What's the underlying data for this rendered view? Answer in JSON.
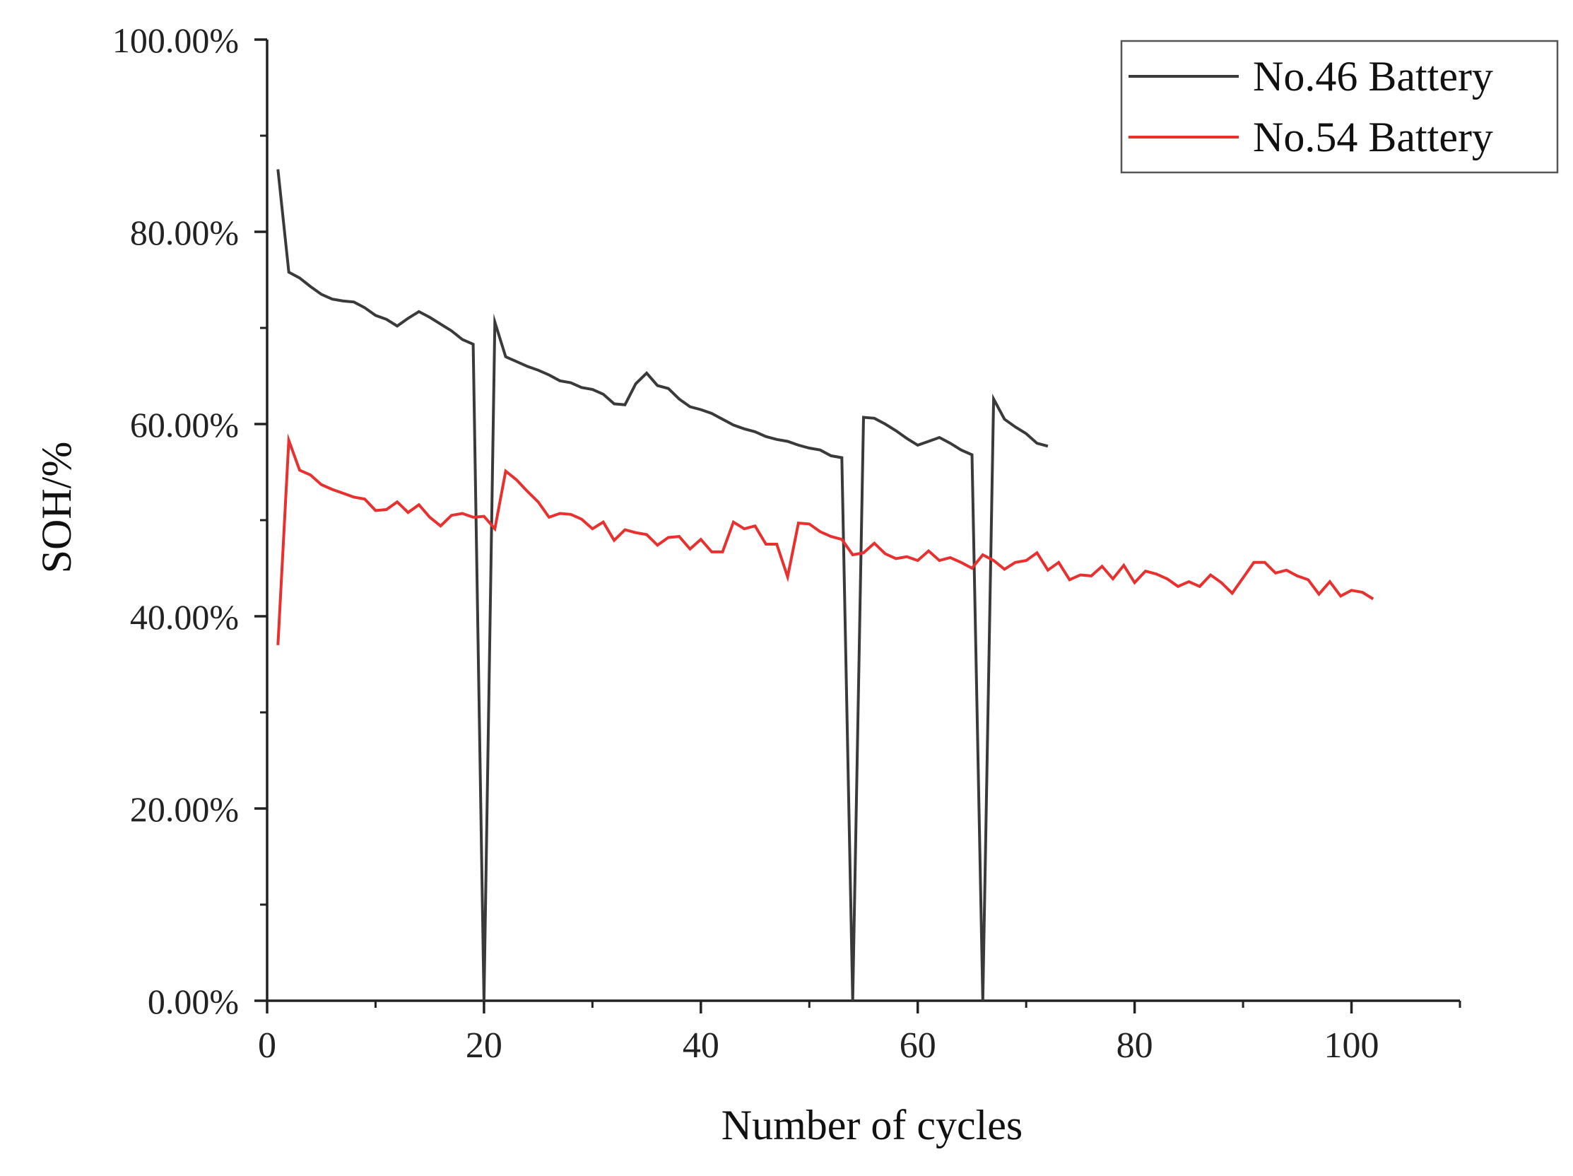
{
  "chart_data": {
    "type": "line",
    "xlabel": "Number of cycles",
    "ylabel": "SOH/%",
    "xlim": [
      0,
      110
    ],
    "ylim": [
      0,
      100
    ],
    "x_ticks": [
      0,
      20,
      40,
      60,
      80,
      100
    ],
    "x_tick_labels": [
      "0",
      "20",
      "40",
      "60",
      "80",
      "100"
    ],
    "y_ticks": [
      0,
      20,
      40,
      60,
      80,
      100
    ],
    "y_tick_labels": [
      "0.00%",
      "20.00%",
      "40.00%",
      "60.00%",
      "80.00%",
      "100.00%"
    ],
    "grid": false,
    "legend_position": "top-right",
    "series": [
      {
        "name": "No.46 Battery",
        "color": "#3a3a3a",
        "x": [
          1,
          2,
          3,
          4,
          5,
          6,
          7,
          8,
          9,
          10,
          11,
          12,
          13,
          14,
          15,
          16,
          17,
          18,
          19,
          20,
          21,
          22,
          23,
          24,
          25,
          26,
          27,
          28,
          29,
          30,
          31,
          32,
          33,
          34,
          35,
          36,
          37,
          38,
          39,
          40,
          41,
          42,
          43,
          44,
          45,
          46,
          47,
          48,
          49,
          50,
          51,
          52,
          53,
          54,
          55,
          56,
          57,
          58,
          59,
          60,
          61,
          62,
          63,
          64,
          65,
          66,
          67,
          68,
          69,
          70,
          71,
          72
        ],
        "values": [
          86.5,
          75.8,
          75.2,
          74.3,
          73.5,
          73.0,
          72.8,
          72.7,
          72.1,
          71.3,
          70.9,
          70.2,
          71.0,
          71.7,
          71.1,
          70.4,
          69.7,
          68.8,
          68.3,
          0.0,
          70.6,
          67.0,
          66.5,
          66.0,
          65.6,
          65.1,
          64.5,
          64.3,
          63.8,
          63.6,
          63.1,
          62.1,
          62.0,
          64.2,
          65.3,
          64.0,
          63.7,
          62.6,
          61.8,
          61.5,
          61.1,
          60.5,
          59.9,
          59.5,
          59.2,
          58.7,
          58.4,
          58.2,
          57.8,
          57.5,
          57.3,
          56.7,
          56.5,
          0.0,
          60.7,
          60.6,
          60.0,
          59.3,
          58.5,
          57.8,
          58.2,
          58.6,
          58.0,
          57.3,
          56.8,
          0.0,
          62.6,
          60.5,
          59.7,
          59.0,
          58.0,
          57.7
        ]
      },
      {
        "name": "No.54 Battery",
        "color": "#e8312f",
        "x": [
          1,
          2,
          3,
          4,
          5,
          6,
          7,
          8,
          9,
          10,
          11,
          12,
          13,
          14,
          15,
          16,
          17,
          18,
          19,
          20,
          21,
          22,
          23,
          24,
          25,
          26,
          27,
          28,
          29,
          30,
          31,
          32,
          33,
          34,
          35,
          36,
          37,
          38,
          39,
          40,
          41,
          42,
          43,
          44,
          45,
          46,
          47,
          48,
          49,
          50,
          51,
          52,
          53,
          54,
          55,
          56,
          57,
          58,
          59,
          60,
          61,
          62,
          63,
          64,
          65,
          66,
          67,
          68,
          69,
          70,
          71,
          72,
          73,
          74,
          75,
          76,
          77,
          78,
          79,
          80,
          81,
          82,
          83,
          84,
          85,
          86,
          87,
          88,
          89,
          90,
          91,
          92,
          93,
          94,
          95,
          96,
          97,
          98,
          99,
          100,
          101,
          102
        ],
        "values": [
          37.0,
          58.3,
          55.2,
          54.7,
          53.7,
          53.2,
          52.8,
          52.4,
          52.2,
          51.0,
          51.1,
          51.9,
          50.8,
          51.6,
          50.3,
          49.4,
          50.5,
          50.7,
          50.3,
          50.4,
          49.1,
          55.1,
          54.2,
          53.0,
          51.9,
          50.3,
          50.7,
          50.6,
          50.1,
          49.1,
          49.8,
          47.9,
          49.0,
          48.7,
          48.5,
          47.4,
          48.2,
          48.3,
          47.0,
          48.0,
          46.7,
          46.7,
          49.8,
          49.1,
          49.4,
          47.5,
          47.5,
          44.1,
          49.7,
          49.6,
          48.8,
          48.3,
          48.0,
          46.4,
          46.6,
          47.6,
          46.5,
          46.0,
          46.2,
          45.8,
          46.8,
          45.8,
          46.1,
          45.6,
          45.0,
          46.4,
          45.8,
          44.9,
          45.6,
          45.8,
          46.6,
          44.8,
          45.6,
          43.8,
          44.3,
          44.2,
          45.2,
          43.9,
          45.3,
          43.5,
          44.7,
          44.4,
          43.9,
          43.1,
          43.6,
          43.1,
          44.3,
          43.5,
          42.4,
          44.0,
          45.6,
          45.6,
          44.5,
          44.8,
          44.2,
          43.8,
          42.3,
          43.6,
          42.1,
          42.7,
          42.5,
          41.8
        ]
      }
    ]
  }
}
